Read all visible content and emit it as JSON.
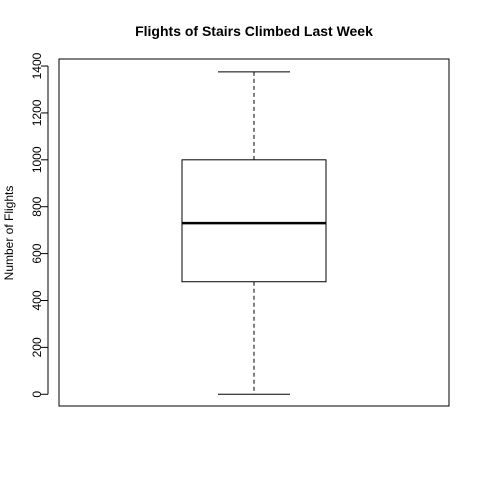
{
  "chart_data": {
    "type": "boxplot",
    "title": "Flights of Stairs Climbed Last Week",
    "xlabel": "",
    "ylabel": "Number of Flights",
    "ylim": [
      -50,
      1430
    ],
    "yticks": [
      0,
      200,
      400,
      600,
      800,
      1000,
      1200,
      1400
    ],
    "ytick_labels": [
      "0",
      "200",
      "400",
      "600",
      "800",
      "1000",
      "1200",
      "1400"
    ],
    "box": {
      "min": 0,
      "q1": 480,
      "median": 730,
      "q3": 1000,
      "max": 1375
    },
    "grid": false,
    "legend": "none"
  }
}
